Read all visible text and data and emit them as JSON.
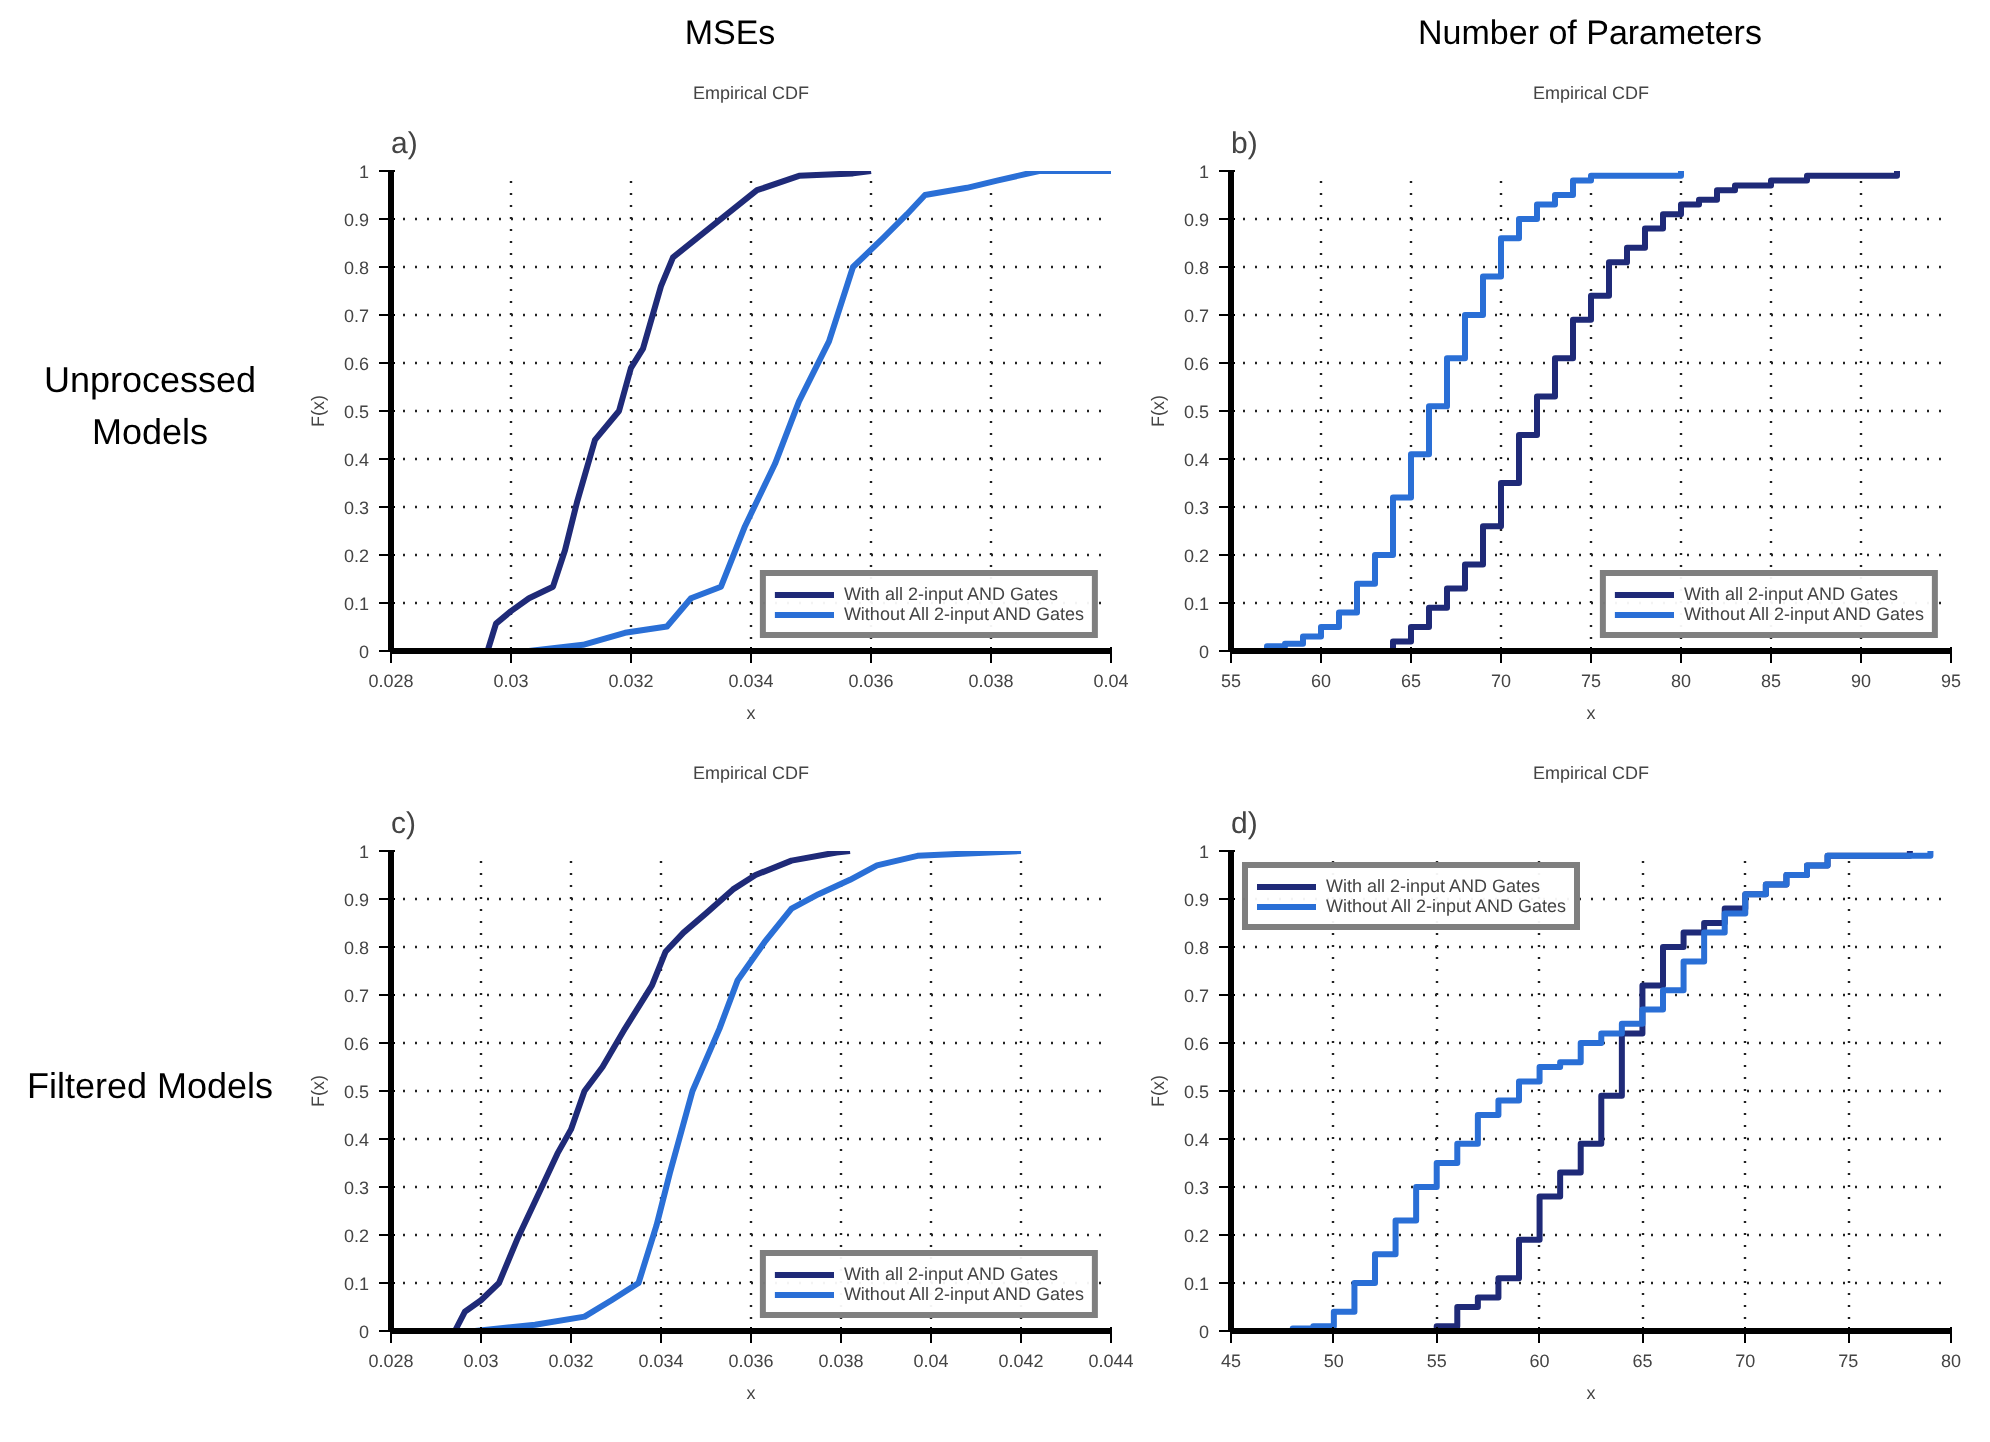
{
  "chart_data": [
    {
      "type": "line",
      "title": "Empirical CDF",
      "xlabel": "x",
      "ylabel": "F(x)",
      "annotations": [
        "a)",
        "MSEs",
        "Unprocessed Models"
      ],
      "xlim": [
        0.028,
        0.04
      ],
      "xticks": [
        0.028,
        0.03,
        0.032,
        0.034,
        0.036,
        0.038,
        0.04
      ],
      "ylim": [
        0,
        1
      ],
      "yticks": [
        0,
        0.1,
        0.2,
        0.3,
        0.4,
        0.5,
        0.6,
        0.7,
        0.8,
        0.9,
        1
      ],
      "grid": true,
      "legend": "bottom right",
      "marker": "none",
      "line_style": "solid",
      "series": [
        {
          "name": "With all 2-input AND Gates",
          "color": "#1f2a78",
          "x": [
            0.02961,
            0.02975,
            0.03,
            0.0303,
            0.0307,
            0.0309,
            0.0311,
            0.0314,
            0.0318,
            0.032,
            0.0322,
            0.0325,
            0.0327,
            0.0331,
            0.0336,
            0.0341,
            0.0348,
            0.0357,
            0.036
          ],
          "values": [
            0,
            0.057,
            0.083,
            0.11,
            0.134,
            0.21,
            0.31,
            0.44,
            0.5,
            0.59,
            0.63,
            0.76,
            0.82,
            0.86,
            0.91,
            0.96,
            0.99,
            0.995,
            1
          ]
        },
        {
          "name": "Without All 2-input AND Gates",
          "color": "#2a6fd6",
          "x": [
            0.0303,
            0.0312,
            0.0319,
            0.0326,
            0.033,
            0.0335,
            0.0339,
            0.0344,
            0.0348,
            0.0353,
            0.0357,
            0.0362,
            0.0366,
            0.0369,
            0.0376,
            0.0381,
            0.0388,
            0.04
          ],
          "values": [
            0,
            0.013,
            0.038,
            0.051,
            0.11,
            0.134,
            0.26,
            0.39,
            0.52,
            0.645,
            0.8,
            0.86,
            0.91,
            0.95,
            0.965,
            0.98,
            1,
            1
          ]
        }
      ]
    },
    {
      "type": "step",
      "title": "Empirical CDF",
      "xlabel": "x",
      "ylabel": "F(x)",
      "annotations": [
        "b)",
        "Number of Parameters"
      ],
      "xlim": [
        55,
        95
      ],
      "xticks": [
        55,
        60,
        65,
        70,
        75,
        80,
        85,
        90,
        95
      ],
      "ylim": [
        0,
        1
      ],
      "yticks": [
        0,
        0.1,
        0.2,
        0.3,
        0.4,
        0.5,
        0.6,
        0.7,
        0.8,
        0.9,
        1
      ],
      "grid": true,
      "legend": "bottom right",
      "marker": "none",
      "line_style": "solid",
      "series": [
        {
          "name": "With all 2-input AND Gates",
          "color": "#1f2a78",
          "x": [
            64,
            64,
            65,
            66,
            67,
            68,
            69,
            70,
            71,
            72,
            73,
            74,
            75,
            76,
            77,
            78,
            79,
            80,
            81,
            82,
            83,
            85,
            87,
            92
          ],
          "values": [
            0,
            0.02,
            0.05,
            0.09,
            0.13,
            0.18,
            0.26,
            0.35,
            0.45,
            0.53,
            0.61,
            0.69,
            0.74,
            0.81,
            0.84,
            0.88,
            0.91,
            0.93,
            0.94,
            0.96,
            0.97,
            0.98,
            0.99,
            1
          ]
        },
        {
          "name": "Without All 2-input AND Gates",
          "color": "#2a6fd6",
          "x": [
            55,
            57,
            58,
            59,
            60,
            61,
            62,
            63,
            64,
            65,
            66,
            67,
            68,
            69,
            70,
            71,
            72,
            73,
            74,
            75,
            80
          ],
          "values": [
            0,
            0.01,
            0.015,
            0.03,
            0.05,
            0.08,
            0.14,
            0.2,
            0.32,
            0.41,
            0.51,
            0.61,
            0.7,
            0.78,
            0.86,
            0.9,
            0.93,
            0.95,
            0.98,
            0.99,
            1
          ]
        }
      ]
    },
    {
      "type": "line",
      "title": "Empirical CDF",
      "xlabel": "x",
      "ylabel": "F(x)",
      "annotations": [
        "c)",
        "Filtered Models"
      ],
      "xlim": [
        0.028,
        0.044
      ],
      "xticks": [
        0.028,
        0.03,
        0.032,
        0.034,
        0.036,
        0.038,
        0.04,
        0.042,
        0.044
      ],
      "ylim": [
        0,
        1
      ],
      "yticks": [
        0,
        0.1,
        0.2,
        0.3,
        0.4,
        0.5,
        0.6,
        0.7,
        0.8,
        0.9,
        1
      ],
      "grid": true,
      "legend": "bottom right",
      "marker": "none",
      "line_style": "solid",
      "series": [
        {
          "name": "With all 2-input AND Gates",
          "color": "#1f2a78",
          "x": [
            0.02942,
            0.02964,
            0.03,
            0.0304,
            0.0308,
            0.0312,
            0.0317,
            0.032,
            0.0323,
            0.0327,
            0.0332,
            0.0338,
            0.0341,
            0.0345,
            0.035,
            0.0356,
            0.0361,
            0.0369,
            0.0379,
            0.0382
          ],
          "values": [
            0,
            0.04,
            0.064,
            0.1,
            0.19,
            0.27,
            0.37,
            0.42,
            0.5,
            0.55,
            0.63,
            0.72,
            0.79,
            0.83,
            0.87,
            0.92,
            0.95,
            0.98,
            0.997,
            1
          ]
        },
        {
          "name": "Without All 2-input AND Gates",
          "color": "#2a6fd6",
          "x": [
            0.02987,
            0.0312,
            0.0323,
            0.0329,
            0.0335,
            0.0339,
            0.0342,
            0.0347,
            0.0353,
            0.0357,
            0.0363,
            0.0369,
            0.0375,
            0.0382,
            0.0388,
            0.0397,
            0.042
          ],
          "values": [
            0,
            0.013,
            0.03,
            0.064,
            0.1,
            0.22,
            0.33,
            0.5,
            0.63,
            0.73,
            0.81,
            0.88,
            0.91,
            0.94,
            0.97,
            0.99,
            1
          ]
        }
      ]
    },
    {
      "type": "step",
      "title": "Empirical CDF",
      "xlabel": "x",
      "ylabel": "F(x)",
      "annotations": [
        "d)"
      ],
      "xlim": [
        45,
        80
      ],
      "xticks": [
        45,
        50,
        55,
        60,
        65,
        70,
        75,
        80
      ],
      "ylim": [
        0,
        1
      ],
      "yticks": [
        0,
        0.1,
        0.2,
        0.3,
        0.4,
        0.5,
        0.6,
        0.7,
        0.8,
        0.9,
        1
      ],
      "grid": true,
      "legend": "top left",
      "marker": "none",
      "line_style": "solid",
      "series": [
        {
          "name": "With all 2-input AND Gates",
          "color": "#1f2a78",
          "x": [
            54,
            55,
            56,
            57,
            58,
            59,
            60,
            61,
            62,
            63,
            64,
            65,
            66,
            67,
            68,
            69,
            70,
            71,
            72,
            73,
            74,
            78
          ],
          "values": [
            0,
            0.01,
            0.05,
            0.07,
            0.11,
            0.19,
            0.28,
            0.33,
            0.39,
            0.49,
            0.62,
            0.72,
            0.8,
            0.83,
            0.85,
            0.88,
            0.91,
            0.93,
            0.95,
            0.97,
            0.99,
            1
          ]
        },
        {
          "name": "Without All 2-input AND Gates",
          "color": "#2a6fd6",
          "x": [
            46,
            48,
            49,
            50,
            51,
            52,
            53,
            54,
            55,
            56,
            57,
            58,
            59,
            60,
            61,
            62,
            63,
            64,
            65,
            66,
            67,
            68,
            69,
            70,
            71,
            72,
            73,
            74,
            79
          ],
          "values": [
            0,
            0.005,
            0.01,
            0.04,
            0.1,
            0.16,
            0.23,
            0.3,
            0.35,
            0.39,
            0.45,
            0.48,
            0.52,
            0.55,
            0.56,
            0.6,
            0.62,
            0.64,
            0.67,
            0.71,
            0.77,
            0.83,
            0.87,
            0.91,
            0.93,
            0.95,
            0.97,
            0.99,
            1
          ]
        }
      ]
    }
  ]
}
